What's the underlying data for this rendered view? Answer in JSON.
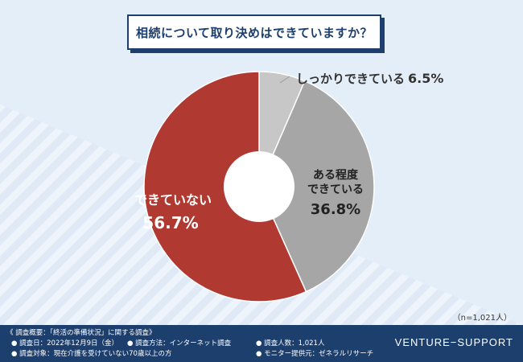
{
  "title": "相続について取り決めはできていますか？",
  "chart_data": {
    "type": "pie",
    "donut": true,
    "slices": [
      {
        "label": "しっかりできている",
        "value": 6.5,
        "value_text": "6.5%",
        "color": "#c7c7c7"
      },
      {
        "label_lines": [
          "ある程度",
          "できている"
        ],
        "value": 36.8,
        "value_text": "36.8%",
        "color": "#a6a6a6"
      },
      {
        "label": "できていない",
        "value": 56.7,
        "value_text": "56.7%",
        "color": "#b03a32"
      }
    ]
  },
  "sample_note": "（n=1,021人）",
  "footer": {
    "header": "《 調査概要：「終活の準備状況」に関する調査》",
    "items": [
      "調査日：2022年12月9日（金）",
      "調査方法：インターネット調査",
      "調査人数：1,021人",
      "調査対象：現在介護を受けていない70歳以上の方",
      "モニター提供元：ゼネラルリサーチ"
    ],
    "brand": "VENTURE−SUPPORT"
  }
}
